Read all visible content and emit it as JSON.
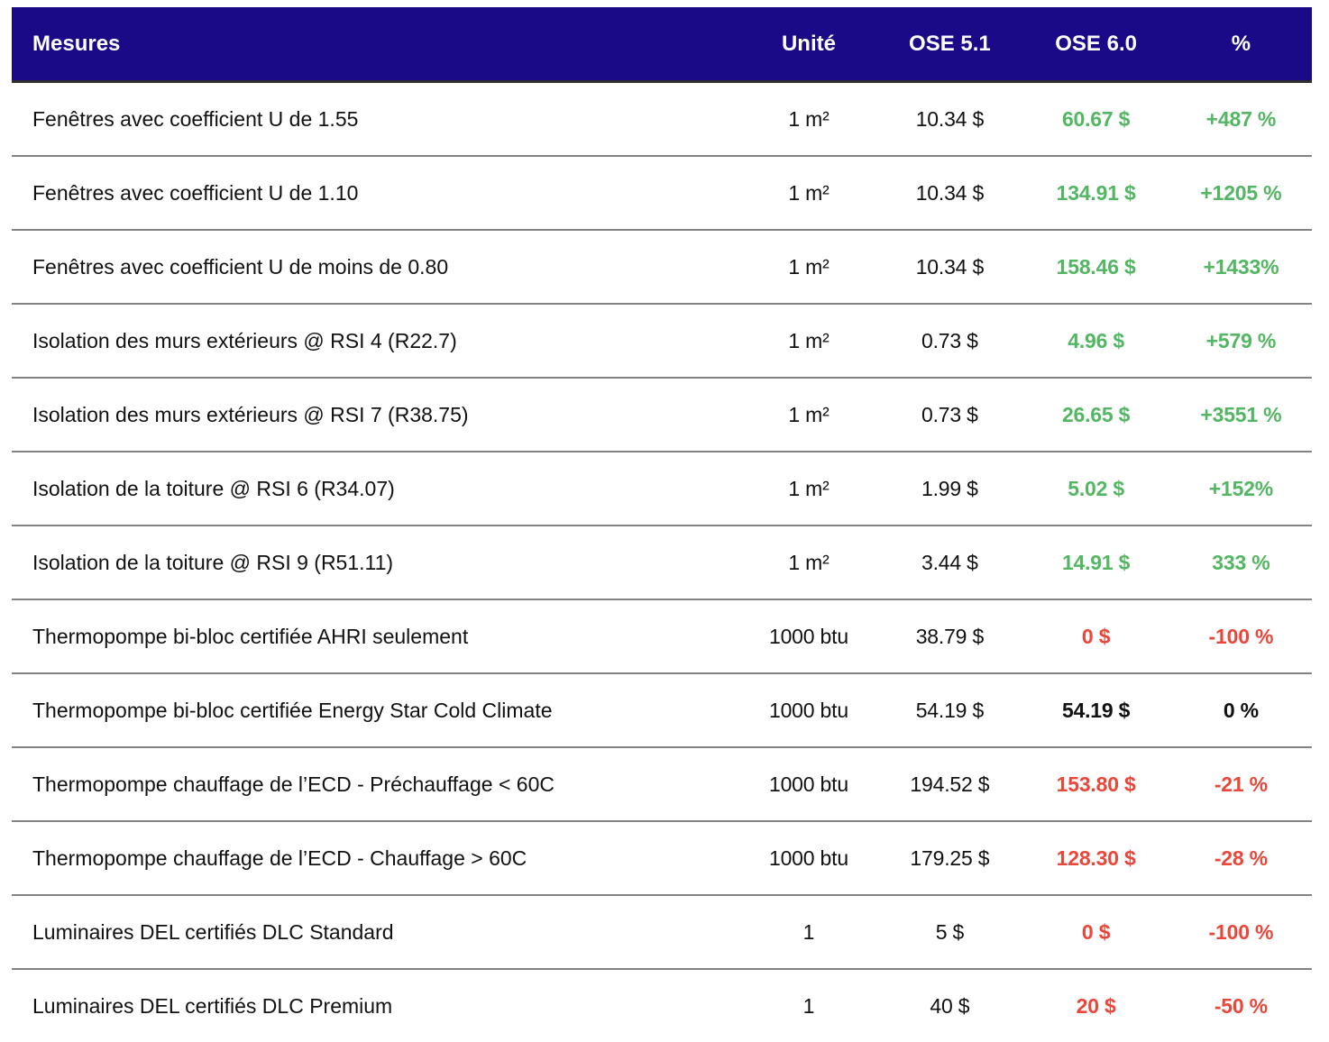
{
  "colors": {
    "header_bg": "#1a0a87",
    "header_text": "#ffffff",
    "positive": "#53b662",
    "negative": "#ea4639",
    "neutral": "#111111",
    "divider": "#828282"
  },
  "chart_data": {
    "type": "table",
    "columns": [
      "Mesures",
      "Unité",
      "OSE 5.1",
      "OSE 6.0",
      "%"
    ],
    "rows": [
      {
        "measure": "Fenêtres avec coefficient U de 1.55",
        "unit": "1 m²",
        "ose_5_1": "10.34 $",
        "ose_6_0": "60.67 $",
        "change_pct": "+487 %",
        "trend": "up"
      },
      {
        "measure": "Fenêtres avec coefficient U de 1.10",
        "unit": "1 m²",
        "ose_5_1": "10.34 $",
        "ose_6_0": "134.91 $",
        "change_pct": "+1205 %",
        "trend": "up"
      },
      {
        "measure": "Fenêtres avec coefficient U de moins de 0.80",
        "unit": "1 m²",
        "ose_5_1": "10.34 $",
        "ose_6_0": "158.46 $",
        "change_pct": "+1433%",
        "trend": "up"
      },
      {
        "measure": "Isolation des murs extérieurs @ RSI 4 (R22.7)",
        "unit": "1 m²",
        "ose_5_1": "0.73 $",
        "ose_6_0": "4.96 $",
        "change_pct": "+579 %",
        "trend": "up"
      },
      {
        "measure": "Isolation des murs extérieurs @ RSI 7 (R38.75)",
        "unit": "1 m²",
        "ose_5_1": "0.73 $",
        "ose_6_0": "26.65 $",
        "change_pct": "+3551 %",
        "trend": "up"
      },
      {
        "measure": "Isolation de la toiture @ RSI 6 (R34.07)",
        "unit": "1 m²",
        "ose_5_1": "1.99 $",
        "ose_6_0": "5.02 $",
        "change_pct": "+152%",
        "trend": "up"
      },
      {
        "measure": "Isolation de la toiture @ RSI 9 (R51.11)",
        "unit": "1 m²",
        "ose_5_1": "3.44 $",
        "ose_6_0": "14.91 $",
        "change_pct": "333 %",
        "trend": "up"
      },
      {
        "measure": "Thermopompe bi-bloc certifiée AHRI seulement",
        "unit": "1000 btu",
        "ose_5_1": "38.79 $",
        "ose_6_0": "0 $",
        "change_pct": "-100 %",
        "trend": "down"
      },
      {
        "measure": "Thermopompe bi-bloc certifiée Energy Star Cold Climate",
        "unit": "1000 btu",
        "ose_5_1": "54.19 $",
        "ose_6_0": "54.19 $",
        "change_pct": "0 %",
        "trend": "flat"
      },
      {
        "measure": "Thermopompe chauffage de l’ECD - Préchauffage < 60C",
        "unit": "1000 btu",
        "ose_5_1": "194.52 $",
        "ose_6_0": "153.80 $",
        "change_pct": "-21 %",
        "trend": "down"
      },
      {
        "measure": "Thermopompe chauffage de l’ECD - Chauffage > 60C",
        "unit": "1000 btu",
        "ose_5_1": "179.25 $",
        "ose_6_0": "128.30 $",
        "change_pct": "-28 %",
        "trend": "down"
      },
      {
        "measure": "Luminaires DEL certifiés DLC Standard",
        "unit": "1",
        "ose_5_1": "5 $",
        "ose_6_0": "0 $",
        "change_pct": "-100 %",
        "trend": "down"
      },
      {
        "measure": "Luminaires DEL certifiés DLC Premium",
        "unit": "1",
        "ose_5_1": "40 $",
        "ose_6_0": "20 $",
        "change_pct": "-50 %",
        "trend": "down"
      }
    ]
  }
}
